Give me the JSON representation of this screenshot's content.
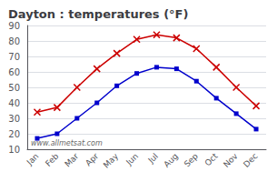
{
  "chart_data": {
    "type": "line",
    "title": "Dayton : temperatures (°F)",
    "categories": [
      "Jan",
      "Feb",
      "Mar",
      "Apr",
      "May",
      "Jun",
      "Jul",
      "Aug",
      "Sep",
      "Oct",
      "Nov",
      "Dec"
    ],
    "series": [
      {
        "color": "#cc0000",
        "marker": "x",
        "values": [
          34,
          37,
          50,
          62,
          72,
          81,
          84,
          82,
          75,
          63,
          50,
          38
        ]
      },
      {
        "color": "#0000cc",
        "marker": "square",
        "values": [
          17,
          20,
          30,
          40,
          51,
          59,
          63,
          62,
          54,
          43,
          33,
          23
        ]
      }
    ],
    "ylim": [
      10,
      90
    ],
    "yticks": [
      10,
      20,
      30,
      40,
      50,
      60,
      70,
      80,
      90
    ],
    "grid": true,
    "annotations": [
      "www.allmetsat.com"
    ]
  }
}
